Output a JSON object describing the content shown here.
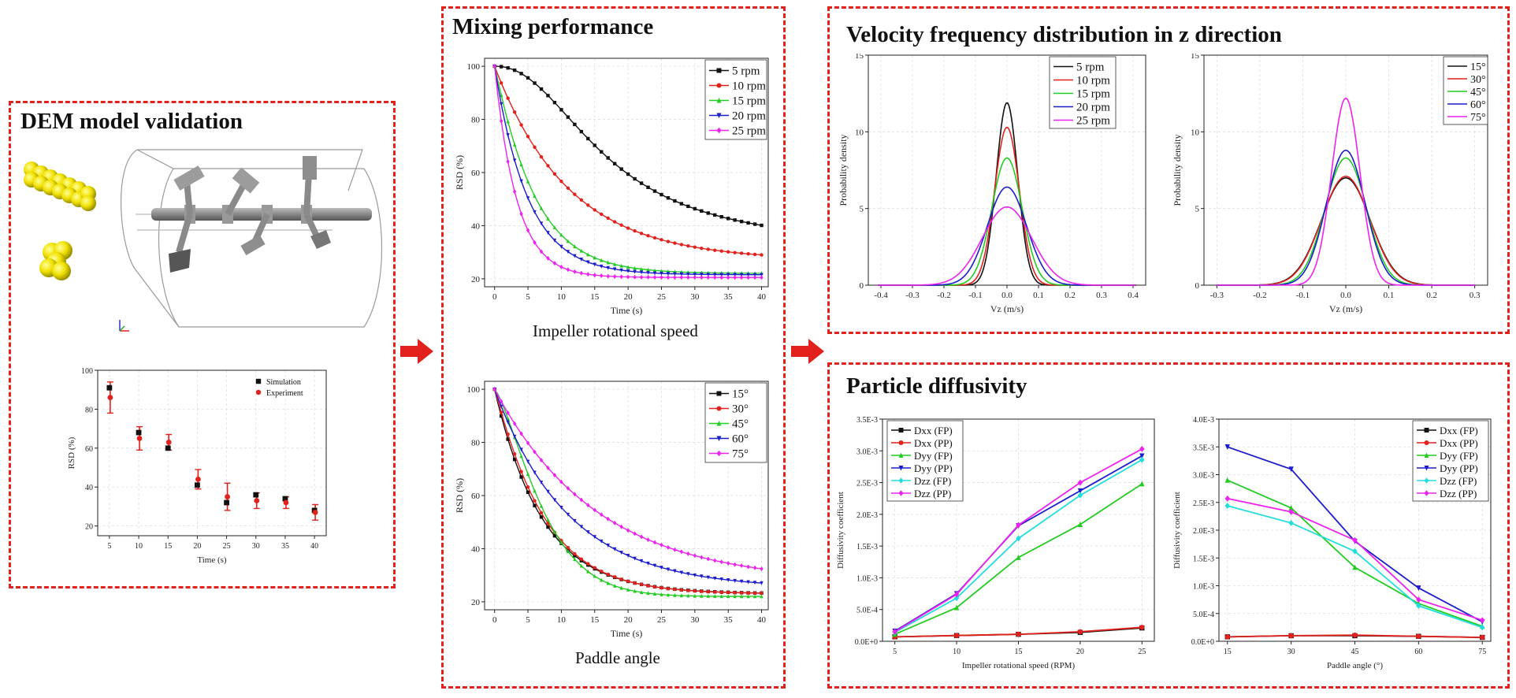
{
  "panels": {
    "dem": {
      "title": "DEM model validation"
    },
    "mixing": {
      "title": "Mixing performance",
      "caption_top": "Impeller rotational speed",
      "caption_bottom": "Paddle angle"
    },
    "velocity": {
      "title": "Velocity frequency distribution in z direction"
    },
    "diffusivity": {
      "title": "Particle diffusivity"
    }
  },
  "colors": {
    "frame": "#e3211c",
    "arrow": "#e3211c"
  },
  "chart_data": [
    {
      "id": "dem_validation",
      "type": "scatter",
      "xlabel": "Time (s)",
      "ylabel": "RSD (%)",
      "xlim": [
        3,
        42
      ],
      "ylim": [
        15,
        100
      ],
      "xticks": [
        5,
        10,
        15,
        20,
        25,
        30,
        35,
        40
      ],
      "yticks": [
        20,
        40,
        60,
        80,
        100
      ],
      "legend": "top-right",
      "series": [
        {
          "name": "Simulation",
          "color": "#111111",
          "marker": "square",
          "x": [
            5,
            10,
            15,
            20,
            25,
            30,
            35,
            40
          ],
          "y": [
            91,
            68,
            60,
            41,
            32,
            36,
            34,
            28
          ]
        },
        {
          "name": "Experiment",
          "color": "#e3211c",
          "marker": "circle",
          "x": [
            5,
            10,
            15,
            20,
            25,
            30,
            35,
            40
          ],
          "y": [
            86,
            65,
            63,
            44,
            35,
            33,
            32,
            27
          ],
          "err": [
            8,
            6,
            4,
            5,
            7,
            4,
            3,
            4
          ]
        }
      ]
    },
    {
      "id": "mixing_speed",
      "type": "line",
      "xlabel": "Time (s)",
      "ylabel": "RSD (%)",
      "xlim": [
        -1.5,
        41
      ],
      "ylim": [
        17,
        103
      ],
      "xticks": [
        0,
        5,
        10,
        15,
        20,
        25,
        30,
        35,
        40
      ],
      "yticks": [
        20,
        40,
        60,
        80,
        100
      ],
      "legend": "top-right",
      "series": [
        {
          "name": "5 rpm",
          "color": "#111111",
          "marker": "square",
          "k": 0,
          "params": {
            "c": 31,
            "a": 69,
            "k": 0.004,
            "n": 2.2
          }
        },
        {
          "name": "10 rpm",
          "color": "#e3211c",
          "marker": "circle",
          "params": {
            "c": 27,
            "a": 73,
            "k": 0.09,
            "n": 1.0
          }
        },
        {
          "name": "15 rpm",
          "color": "#22cc22",
          "marker": "triangle",
          "params": {
            "c": 22,
            "a": 78,
            "k": 0.15,
            "n": 1.05
          }
        },
        {
          "name": "20 rpm",
          "color": "#1c1ccc",
          "marker": "triangle-down",
          "params": {
            "c": 21.5,
            "a": 78.5,
            "k": 0.2,
            "n": 1.0
          }
        },
        {
          "name": "25 rpm",
          "color": "#ee22ee",
          "marker": "diamond",
          "params": {
            "c": 20.5,
            "a": 79.5,
            "k": 0.3,
            "n": 1.0
          }
        }
      ]
    },
    {
      "id": "mixing_angle",
      "type": "line",
      "xlabel": "Time (s)",
      "ylabel": "RSD (%)",
      "xlim": [
        -1.5,
        41
      ],
      "ylim": [
        17,
        103
      ],
      "xticks": [
        0,
        5,
        10,
        15,
        20,
        25,
        30,
        35,
        40
      ],
      "yticks": [
        20,
        40,
        60,
        80,
        100
      ],
      "legend": "top-right",
      "series": [
        {
          "name": "15°",
          "color": "#111111",
          "marker": "square",
          "params": {
            "c": 23,
            "a": 77,
            "k": 0.14,
            "n": 1.0
          }
        },
        {
          "name": "30°",
          "color": "#e3211c",
          "marker": "circle",
          "params": {
            "c": 23,
            "a": 77,
            "k": 0.12,
            "n": 1.05
          }
        },
        {
          "name": "45°",
          "color": "#22cc22",
          "marker": "triangle",
          "params": {
            "c": 22,
            "a": 78,
            "k": 0.06,
            "n": 1.35
          }
        },
        {
          "name": "60°",
          "color": "#1c1ccc",
          "marker": "triangle-down",
          "params": {
            "c": 25,
            "a": 75,
            "k": 0.09,
            "n": 1.0
          }
        },
        {
          "name": "75°",
          "color": "#ee22ee",
          "marker": "diamond",
          "params": {
            "c": 27,
            "a": 73,
            "k": 0.065,
            "n": 1.0
          }
        }
      ]
    },
    {
      "id": "velocity_speed",
      "type": "line",
      "xlabel": "Vz (m/s)",
      "ylabel": "Probability density",
      "xlim": [
        -0.44,
        0.44
      ],
      "ylim": [
        0,
        15
      ],
      "xticks": [
        -0.4,
        -0.3,
        -0.2,
        -0.1,
        0.0,
        0.1,
        0.2,
        0.3,
        0.4
      ],
      "yticks": [
        0,
        5,
        10,
        15
      ],
      "legend": "top-right",
      "series": [
        {
          "name": "5 rpm",
          "color": "#111111",
          "peak": 11.9,
          "sigma": 0.034
        },
        {
          "name": "10 rpm",
          "color": "#e3211c",
          "peak": 10.3,
          "sigma": 0.039
        },
        {
          "name": "15 rpm",
          "color": "#22cc22",
          "peak": 8.3,
          "sigma": 0.048
        },
        {
          "name": "20 rpm",
          "color": "#1c1ccc",
          "peak": 6.4,
          "sigma": 0.062
        },
        {
          "name": "25 rpm",
          "color": "#ee22ee",
          "peak": 5.1,
          "sigma": 0.078
        }
      ]
    },
    {
      "id": "velocity_angle",
      "type": "line",
      "xlabel": "Vz (m/s)",
      "ylabel": "Probability density",
      "xlim": [
        -0.33,
        0.33
      ],
      "ylim": [
        0,
        15
      ],
      "xticks": [
        -0.3,
        -0.2,
        -0.1,
        0.0,
        0.1,
        0.2,
        0.3
      ],
      "yticks": [
        0,
        5,
        10,
        15
      ],
      "legend": "top-right",
      "series": [
        {
          "name": "15°",
          "color": "#111111",
          "peak": 7.0,
          "sigma": 0.057
        },
        {
          "name": "30°",
          "color": "#e3211c",
          "peak": 7.1,
          "sigma": 0.056
        },
        {
          "name": "45°",
          "color": "#22cc22",
          "peak": 8.3,
          "sigma": 0.048
        },
        {
          "name": "60°",
          "color": "#1c1ccc",
          "peak": 8.8,
          "sigma": 0.045
        },
        {
          "name": "75°",
          "color": "#ee22ee",
          "peak": 12.2,
          "sigma": 0.033
        }
      ]
    },
    {
      "id": "diffusivity_speed",
      "type": "line",
      "xlabel": "Impeller rotational speed (RPM)",
      "ylabel": "Diffusivity coefficient",
      "xlim": [
        4,
        26
      ],
      "ylim": [
        0,
        0.0035
      ],
      "xticks": [
        5,
        10,
        15,
        20,
        25
      ],
      "yticks": [
        0,
        0.0005,
        0.001,
        0.0015,
        0.002,
        0.0025,
        0.003,
        0.0035
      ],
      "yticklabels": [
        "0.0E+0",
        "5.0E-4",
        "1.0E-3",
        "1.5E-3",
        "2.0E-3",
        "2.5E-3",
        "3.0E-3",
        "3.5E-3"
      ],
      "legend": "top-left",
      "x": [
        5,
        10,
        15,
        20,
        25
      ],
      "series": [
        {
          "name": "Dxx (FP)",
          "color": "#111111",
          "marker": "square",
          "values": [
            7e-05,
            9e-05,
            0.00011,
            0.00014,
            0.00021
          ]
        },
        {
          "name": "Dxx (PP)",
          "color": "#e3211c",
          "marker": "circle",
          "values": [
            7e-05,
            9e-05,
            0.00011,
            0.00015,
            0.00022
          ]
        },
        {
          "name": "Dyy (FP)",
          "color": "#22cc22",
          "marker": "triangle",
          "values": [
            0.00011,
            0.00053,
            0.00132,
            0.00184,
            0.00248
          ]
        },
        {
          "name": "Dyy (PP)",
          "color": "#1c1ccc",
          "marker": "triangle-down",
          "values": [
            0.00016,
            0.00075,
            0.00182,
            0.00237,
            0.00292
          ]
        },
        {
          "name": "Dzz (FP)",
          "color": "#22dddd",
          "marker": "diamond",
          "values": [
            0.00014,
            0.00068,
            0.00162,
            0.0023,
            0.00286
          ]
        },
        {
          "name": "Dzz (PP)",
          "color": "#ee22ee",
          "marker": "diamond",
          "values": [
            0.00015,
            0.00074,
            0.00183,
            0.0025,
            0.00303
          ]
        }
      ]
    },
    {
      "id": "diffusivity_angle",
      "type": "line",
      "xlabel": "Paddle angle (°)",
      "ylabel": "Diffusivity coefficient",
      "xlim": [
        13,
        77
      ],
      "ylim": [
        0,
        0.004
      ],
      "xticks": [
        15,
        30,
        45,
        60,
        75
      ],
      "yticks": [
        0,
        0.0005,
        0.001,
        0.0015,
        0.002,
        0.0025,
        0.003,
        0.0035,
        0.004
      ],
      "yticklabels": [
        "0.0E+0",
        "5.0E-4",
        "1.0E-3",
        "1.5E-3",
        "2.0E-3",
        "2.5E-3",
        "3.0E-3",
        "3.5E-3",
        "4.0E-3"
      ],
      "legend": "top-right",
      "x": [
        15,
        30,
        45,
        60,
        75
      ],
      "series": [
        {
          "name": "Dxx (FP)",
          "color": "#111111",
          "marker": "square",
          "values": [
            8e-05,
            0.0001,
            0.0001,
            9e-05,
            7e-05
          ]
        },
        {
          "name": "Dxx (PP)",
          "color": "#e3211c",
          "marker": "circle",
          "values": [
            8e-05,
            0.0001,
            0.00011,
            9e-05,
            7e-05
          ]
        },
        {
          "name": "Dyy (FP)",
          "color": "#22cc22",
          "marker": "triangle",
          "values": [
            0.0029,
            0.0024,
            0.00133,
            0.00068,
            0.00027
          ]
        },
        {
          "name": "Dyy (PP)",
          "color": "#1c1ccc",
          "marker": "triangle-down",
          "values": [
            0.0035,
            0.0031,
            0.0018,
            0.00096,
            0.00035
          ]
        },
        {
          "name": "Dzz (FP)",
          "color": "#22dddd",
          "marker": "diamond",
          "values": [
            0.00244,
            0.00213,
            0.00162,
            0.00064,
            0.00025
          ]
        },
        {
          "name": "Dzz (PP)",
          "color": "#ee22ee",
          "marker": "diamond",
          "values": [
            0.00257,
            0.00233,
            0.00182,
            0.00075,
            0.00038
          ]
        }
      ]
    }
  ]
}
